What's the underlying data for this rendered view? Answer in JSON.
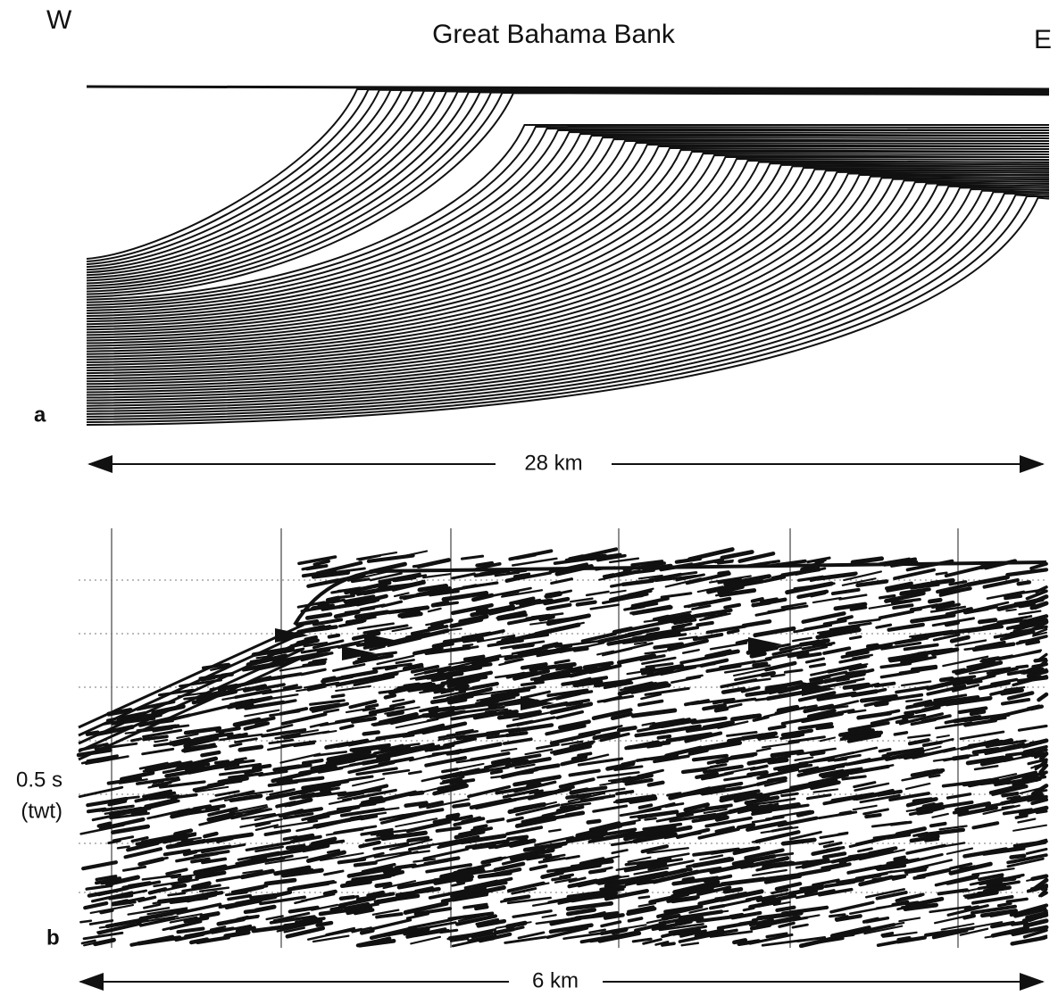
{
  "header": {
    "west": "W",
    "title": "Great Bahama Bank",
    "east": "E"
  },
  "panel_a": {
    "label": "a",
    "scale": "28 km"
  },
  "panel_b": {
    "label": "b",
    "time_label": "0.5 s",
    "time_unit": "(twt)",
    "scale": "6 km"
  }
}
